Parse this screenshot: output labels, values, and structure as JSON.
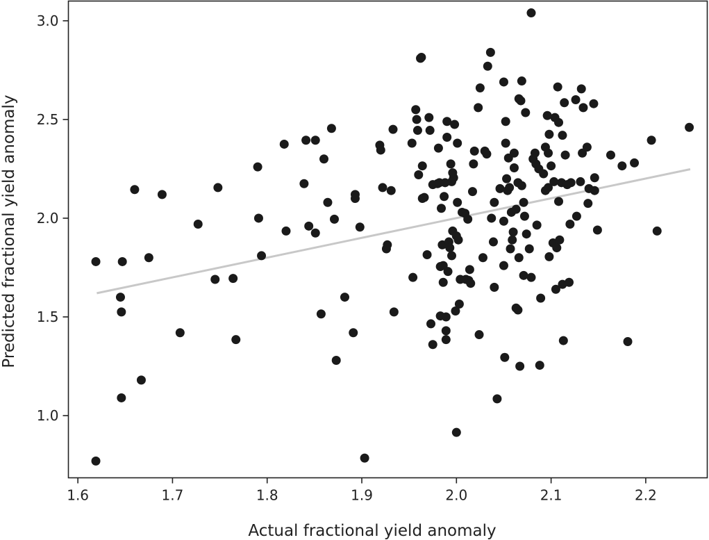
{
  "chart_data": {
    "type": "scatter",
    "title": "",
    "xlabel": "Actual fractional yield anomaly",
    "ylabel": "Predicted fractional yield anomaly",
    "xlim": [
      1.59,
      2.265
    ],
    "ylim": [
      0.685,
      3.1
    ],
    "xticks": [
      1.6,
      1.7,
      1.8,
      1.9,
      2.0,
      2.1,
      2.2
    ],
    "xtick_labels": [
      "1.6",
      "1.7",
      "1.8",
      "1.9",
      "2.0",
      "2.1",
      "2.2"
    ],
    "yticks": [
      1.0,
      1.5,
      2.0,
      2.5,
      3.0
    ],
    "ytick_labels": [
      "1.0",
      "1.5",
      "2.0",
      "2.5",
      "3.0"
    ],
    "grid": false,
    "point_color": "#1a1a1a",
    "trend_color": "#c8c8c8",
    "trend_line": [
      [
        1.62,
        1.62
      ],
      [
        2.247,
        2.248
      ]
    ],
    "points": [
      [
        1.619,
        1.78
      ],
      [
        1.619,
        0.77
      ],
      [
        1.645,
        1.6
      ],
      [
        1.646,
        1.525
      ],
      [
        1.646,
        1.09
      ],
      [
        1.647,
        1.78
      ],
      [
        1.66,
        2.145
      ],
      [
        1.667,
        1.18
      ],
      [
        1.675,
        1.8
      ],
      [
        1.689,
        2.12
      ],
      [
        1.708,
        1.42
      ],
      [
        1.727,
        1.97
      ],
      [
        1.745,
        1.69
      ],
      [
        1.748,
        2.155
      ],
      [
        1.764,
        1.695
      ],
      [
        1.767,
        1.385
      ],
      [
        1.79,
        2.26
      ],
      [
        1.791,
        2.0
      ],
      [
        1.794,
        1.81
      ],
      [
        1.818,
        2.375
      ],
      [
        1.82,
        1.935
      ],
      [
        1.839,
        2.175
      ],
      [
        1.841,
        2.395
      ],
      [
        1.844,
        1.96
      ],
      [
        1.851,
        2.395
      ],
      [
        1.851,
        1.925
      ],
      [
        1.857,
        1.515
      ],
      [
        1.86,
        2.3
      ],
      [
        1.864,
        2.08
      ],
      [
        1.868,
        2.455
      ],
      [
        1.871,
        1.995
      ],
      [
        1.873,
        1.28
      ],
      [
        1.882,
        1.6
      ],
      [
        1.891,
        1.42
      ],
      [
        1.893,
        2.12
      ],
      [
        1.893,
        2.1
      ],
      [
        1.898,
        1.955
      ],
      [
        1.903,
        0.785
      ],
      [
        1.919,
        2.37
      ],
      [
        1.92,
        2.345
      ],
      [
        1.922,
        2.155
      ],
      [
        1.926,
        1.845
      ],
      [
        1.927,
        1.865
      ],
      [
        1.931,
        2.14
      ],
      [
        1.933,
        2.45
      ],
      [
        1.934,
        1.525
      ],
      [
        1.953,
        2.38
      ],
      [
        1.954,
        1.7
      ],
      [
        1.957,
        2.55
      ],
      [
        1.958,
        2.5
      ],
      [
        1.959,
        2.445
      ],
      [
        1.96,
        2.22
      ],
      [
        1.962,
        2.81
      ],
      [
        1.963,
        2.815
      ],
      [
        1.964,
        2.1
      ],
      [
        1.964,
        2.265
      ],
      [
        1.966,
        2.105
      ],
      [
        1.969,
        1.815
      ],
      [
        1.971,
        2.51
      ],
      [
        1.972,
        2.445
      ],
      [
        1.973,
        1.465
      ],
      [
        1.975,
        1.36
      ],
      [
        1.975,
        2.17
      ],
      [
        1.98,
        2.175
      ],
      [
        1.981,
        2.355
      ],
      [
        1.982,
        2.18
      ],
      [
        1.983,
        1.505
      ],
      [
        1.983,
        1.755
      ],
      [
        1.984,
        2.05
      ],
      [
        1.985,
        1.865
      ],
      [
        1.986,
        1.76
      ],
      [
        1.986,
        1.675
      ],
      [
        1.987,
        2.11
      ],
      [
        1.988,
        2.18
      ],
      [
        1.989,
        1.5
      ],
      [
        1.989,
        1.43
      ],
      [
        1.989,
        1.385
      ],
      [
        1.99,
        2.41
      ],
      [
        1.99,
        2.49
      ],
      [
        1.991,
        1.73
      ],
      [
        1.992,
        1.88
      ],
      [
        1.993,
        1.85
      ],
      [
        1.994,
        2.275
      ],
      [
        1.995,
        1.81
      ],
      [
        1.995,
        2.185
      ],
      [
        1.996,
        2.23
      ],
      [
        1.996,
        1.935
      ],
      [
        1.997,
        2.205
      ],
      [
        1.998,
        2.475
      ],
      [
        1.999,
        1.53
      ],
      [
        2.0,
        1.91
      ],
      [
        2.0,
        0.915
      ],
      [
        2.001,
        2.38
      ],
      [
        2.001,
        2.08
      ],
      [
        2.002,
        1.89
      ],
      [
        2.003,
        1.565
      ],
      [
        2.004,
        1.69
      ],
      [
        2.006,
        2.03
      ],
      [
        2.009,
        2.025
      ],
      [
        2.01,
        1.69
      ],
      [
        2.012,
        1.995
      ],
      [
        2.013,
        1.685
      ],
      [
        2.014,
        1.74
      ],
      [
        2.015,
        1.67
      ],
      [
        2.017,
        2.135
      ],
      [
        2.018,
        2.275
      ],
      [
        2.019,
        2.34
      ],
      [
        2.023,
        2.56
      ],
      [
        2.024,
        1.41
      ],
      [
        2.025,
        2.66
      ],
      [
        2.028,
        1.8
      ],
      [
        2.03,
        2.34
      ],
      [
        2.032,
        2.325
      ],
      [
        2.033,
        2.77
      ],
      [
        2.036,
        2.84
      ],
      [
        2.037,
        2.0
      ],
      [
        2.039,
        1.88
      ],
      [
        2.04,
        1.65
      ],
      [
        2.04,
        2.08
      ],
      [
        2.043,
        1.085
      ],
      [
        2.046,
        2.15
      ],
      [
        2.05,
        2.69
      ],
      [
        2.05,
        1.985
      ],
      [
        2.05,
        1.76
      ],
      [
        2.051,
        1.295
      ],
      [
        2.052,
        2.49
      ],
      [
        2.052,
        2.38
      ],
      [
        2.053,
        2.2
      ],
      [
        2.054,
        2.14
      ],
      [
        2.055,
        2.305
      ],
      [
        2.056,
        2.155
      ],
      [
        2.057,
        1.845
      ],
      [
        2.058,
        2.03
      ],
      [
        2.059,
        1.89
      ],
      [
        2.06,
        1.93
      ],
      [
        2.061,
        2.33
      ],
      [
        2.061,
        2.255
      ],
      [
        2.063,
        1.545
      ],
      [
        2.063,
        2.045
      ],
      [
        2.065,
        1.535
      ],
      [
        2.065,
        2.18
      ],
      [
        2.066,
        1.8
      ],
      [
        2.066,
        2.605
      ],
      [
        2.067,
        1.25
      ],
      [
        2.068,
        2.595
      ],
      [
        2.069,
        2.165
      ],
      [
        2.069,
        2.695
      ],
      [
        2.071,
        2.08
      ],
      [
        2.071,
        1.71
      ],
      [
        2.072,
        2.01
      ],
      [
        2.073,
        2.535
      ],
      [
        2.074,
        1.92
      ],
      [
        2.077,
        1.845
      ],
      [
        2.079,
        3.04
      ],
      [
        2.079,
        1.7
      ],
      [
        2.081,
        2.3
      ],
      [
        2.083,
        2.33
      ],
      [
        2.084,
        2.275
      ],
      [
        2.085,
        1.965
      ],
      [
        2.087,
        2.25
      ],
      [
        2.088,
        1.255
      ],
      [
        2.089,
        1.595
      ],
      [
        2.092,
        2.225
      ],
      [
        2.094,
        2.36
      ],
      [
        2.094,
        2.14
      ],
      [
        2.096,
        2.52
      ],
      [
        2.097,
        2.33
      ],
      [
        2.097,
        2.155
      ],
      [
        2.098,
        2.425
      ],
      [
        2.098,
        1.805
      ],
      [
        2.1,
        2.265
      ],
      [
        2.102,
        1.875
      ],
      [
        2.103,
        2.185
      ],
      [
        2.104,
        2.51
      ],
      [
        2.105,
        1.64
      ],
      [
        2.106,
        1.85
      ],
      [
        2.107,
        2.665
      ],
      [
        2.108,
        2.085
      ],
      [
        2.108,
        2.485
      ],
      [
        2.109,
        1.89
      ],
      [
        2.111,
        2.18
      ],
      [
        2.112,
        2.42
      ],
      [
        2.112,
        1.665
      ],
      [
        2.113,
        1.38
      ],
      [
        2.114,
        2.585
      ],
      [
        2.115,
        2.32
      ],
      [
        2.117,
        2.17
      ],
      [
        2.119,
        1.675
      ],
      [
        2.12,
        1.97
      ],
      [
        2.121,
        2.18
      ],
      [
        2.126,
        2.6
      ],
      [
        2.127,
        2.01
      ],
      [
        2.131,
        2.185
      ],
      [
        2.132,
        2.655
      ],
      [
        2.133,
        2.33
      ],
      [
        2.134,
        2.56
      ],
      [
        2.138,
        2.36
      ],
      [
        2.139,
        2.075
      ],
      [
        2.14,
        2.15
      ],
      [
        2.145,
        2.58
      ],
      [
        2.146,
        2.205
      ],
      [
        2.146,
        2.14
      ],
      [
        2.149,
        1.94
      ],
      [
        2.163,
        2.32
      ],
      [
        2.175,
        2.265
      ],
      [
        2.181,
        1.375
      ],
      [
        2.188,
        2.28
      ],
      [
        2.206,
        2.395
      ],
      [
        2.212,
        1.935
      ],
      [
        2.246,
        2.46
      ]
    ]
  }
}
